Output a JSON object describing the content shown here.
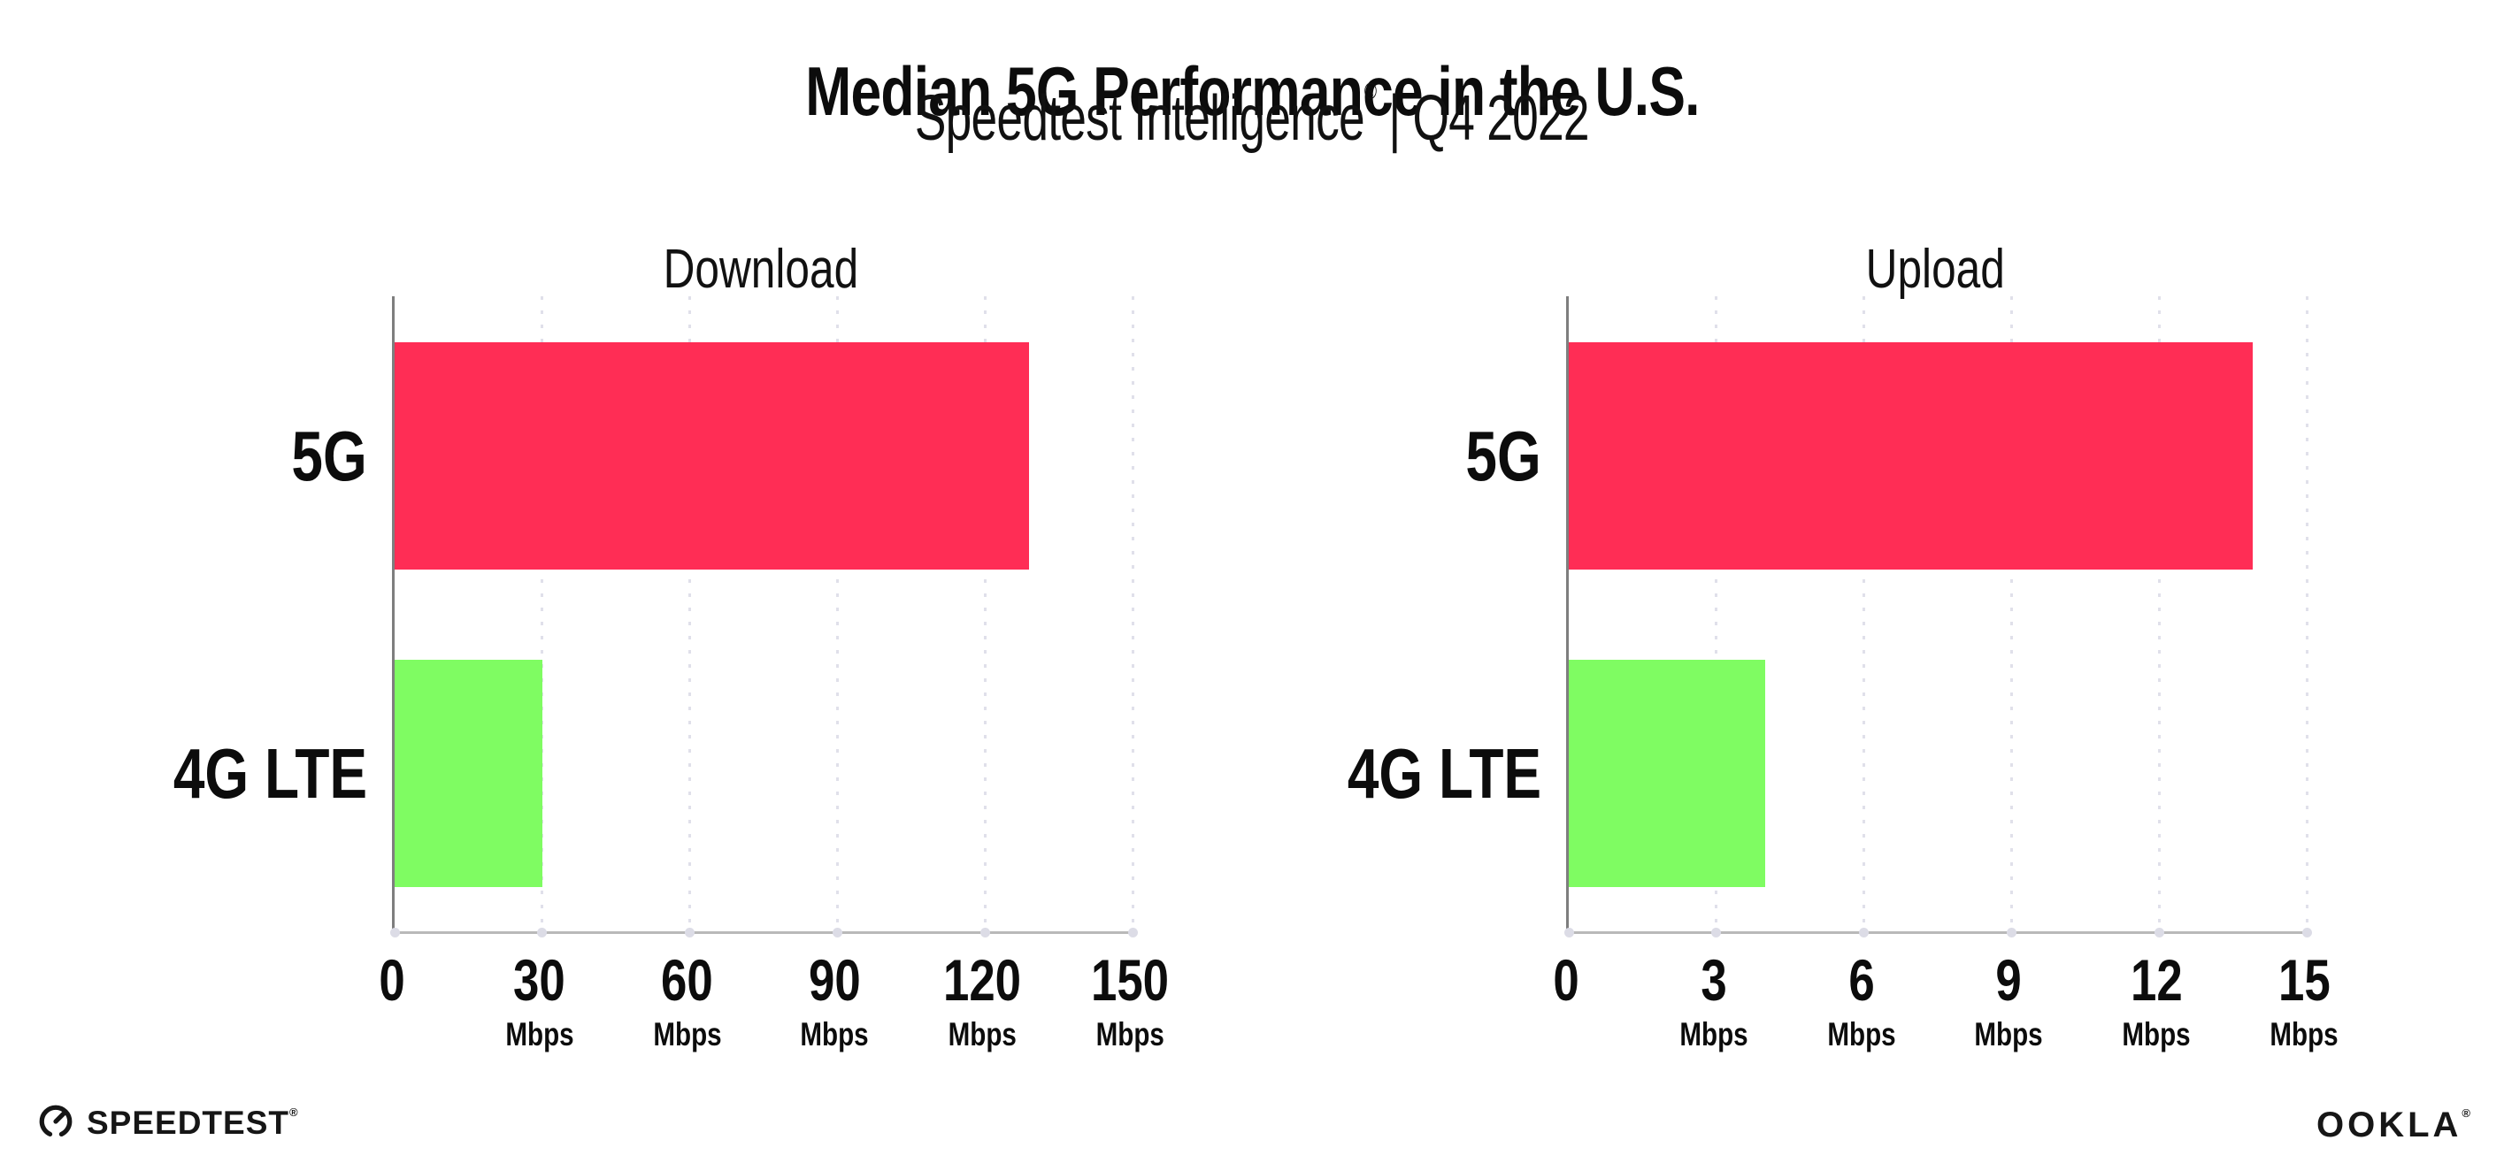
{
  "header": {
    "title": "Median 5G Performance in the U.S.",
    "subtitle_brand": "Speedtest Intelligence",
    "subtitle_reg": "®",
    "subtitle_period": "| Q4 2022"
  },
  "footer": {
    "speedtest_label": "SPEEDTEST",
    "speedtest_mark": "®",
    "ookla_label": "OOKLA",
    "ookla_mark": "®"
  },
  "colors": {
    "bar_5g": "#ff2d55",
    "bar_4g_lte": "#7ffc62",
    "grid_dot": "#e0e0ea",
    "y_axis": "#7e7e7e",
    "x_axis": "#b9b9b9",
    "text": "#0c0c0c"
  },
  "chart_data": [
    {
      "type": "bar",
      "orientation": "horizontal",
      "title": "Download",
      "categories": [
        "5G",
        "4G LTE"
      ],
      "values": [
        129,
        30
      ],
      "unit": "Mbps",
      "xlim": [
        0,
        150
      ],
      "xticks": [
        0,
        30,
        60,
        90,
        120,
        150
      ],
      "grid": "dotted-vertical",
      "legend": "none",
      "bar_colors": [
        "#ff2d55",
        "#7ffc62"
      ]
    },
    {
      "type": "bar",
      "orientation": "horizontal",
      "title": "Upload",
      "categories": [
        "5G",
        "4G LTE"
      ],
      "values": [
        13.9,
        4
      ],
      "unit": "Mbps",
      "xlim": [
        0,
        15
      ],
      "xticks": [
        0,
        3,
        6,
        9,
        12,
        15
      ],
      "grid": "dotted-vertical",
      "legend": "none",
      "bar_colors": [
        "#ff2d55",
        "#7ffc62"
      ]
    }
  ]
}
